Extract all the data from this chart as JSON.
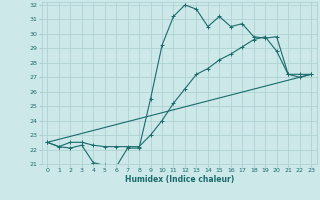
{
  "xlabel": "Humidex (Indice chaleur)",
  "bg_color": "#cce8e8",
  "grid_color": "#aacece",
  "line_color": "#1a6b6b",
  "xlim": [
    -0.5,
    23.5
  ],
  "ylim": [
    21,
    32.2
  ],
  "xticks": [
    0,
    1,
    2,
    3,
    4,
    5,
    6,
    7,
    8,
    9,
    10,
    11,
    12,
    13,
    14,
    15,
    16,
    17,
    18,
    19,
    20,
    21,
    22,
    23
  ],
  "yticks": [
    21,
    22,
    23,
    24,
    25,
    26,
    27,
    28,
    29,
    30,
    31,
    32
  ],
  "line1_x": [
    0,
    1,
    2,
    3,
    4,
    5,
    6,
    7,
    8,
    9,
    10,
    11,
    12,
    13,
    14,
    15,
    16,
    17,
    18,
    19,
    20,
    21,
    22,
    23
  ],
  "line1_y": [
    22.5,
    22.2,
    22.1,
    22.3,
    21.1,
    20.9,
    20.8,
    22.1,
    22.1,
    25.5,
    29.2,
    31.2,
    32.0,
    31.7,
    30.5,
    31.2,
    30.5,
    30.7,
    29.8,
    29.7,
    29.8,
    27.2,
    27.0,
    27.2
  ],
  "line2_x": [
    0,
    1,
    2,
    3,
    4,
    5,
    6,
    7,
    8,
    9,
    10,
    11,
    12,
    13,
    14,
    15,
    16,
    17,
    18,
    19,
    20,
    21,
    22,
    23
  ],
  "line2_y": [
    22.5,
    22.2,
    22.5,
    22.5,
    22.3,
    22.2,
    22.2,
    22.2,
    22.2,
    23.0,
    24.0,
    25.2,
    26.2,
    27.2,
    27.6,
    28.2,
    28.6,
    29.1,
    29.6,
    29.8,
    28.8,
    27.2,
    27.2,
    27.2
  ],
  "line3_x": [
    0,
    23
  ],
  "line3_y": [
    22.5,
    27.2
  ]
}
